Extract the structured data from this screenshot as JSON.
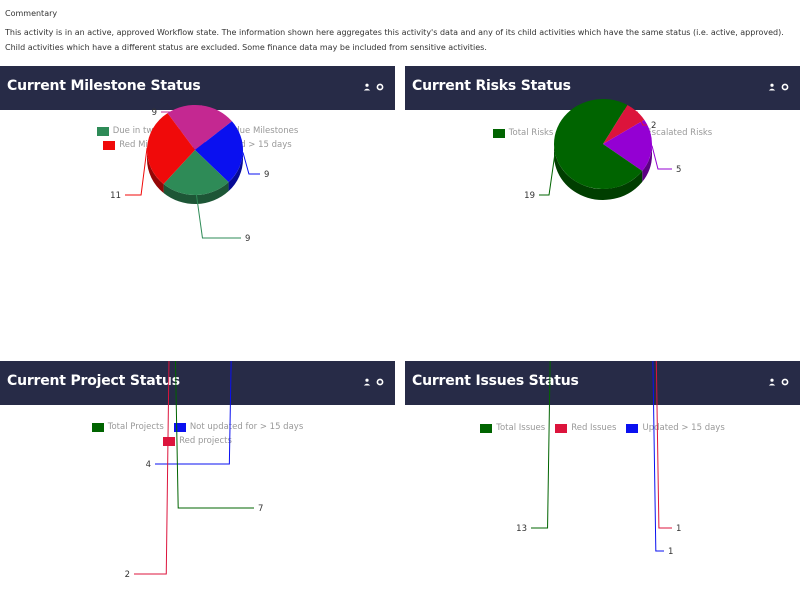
{
  "commentary": {
    "title": "Commentary",
    "text": "This activity is in an active, approved Workflow state. The information shown here aggregates this activity's data and any of its child activities which have the same status (i.e. active, approved). Child activities which have a different status are excluded. Some finance data may be included from sensitive activities."
  },
  "panels": [
    {
      "title": "Current Milestone Status",
      "icons": [
        "person-icon",
        "settings-icon"
      ],
      "chart_data": {
        "type": "pie",
        "legend": [
          [
            "Due in two weeks",
            "Overdue Milestones"
          ],
          [
            "Red Milestones",
            "Updated > 15 days"
          ]
        ],
        "slices": [
          {
            "label": "Overdue Milestones",
            "value": 9,
            "color": "#c42891"
          },
          {
            "label": "Updated > 15 days",
            "value": 9,
            "color": "#0a10f0"
          },
          {
            "label": "Due in two weeks",
            "value": 9,
            "color": "#2e8b57"
          },
          {
            "label": "Red Milestones",
            "value": 11,
            "color": "#f00a0a"
          }
        ]
      }
    },
    {
      "title": "Current Risks Status",
      "icons": [
        "person-icon",
        "settings-icon"
      ],
      "chart_data": {
        "type": "pie",
        "legend": [
          [
            "Total Risks",
            "Red Risks",
            "Escalated Risks"
          ]
        ],
        "slices": [
          {
            "label": "Red Risks",
            "value": 2,
            "color": "#dc143c"
          },
          {
            "label": "Escalated Risks",
            "value": 5,
            "color": "#9400d3"
          },
          {
            "label": "Total Risks",
            "value": 19,
            "color": "#006400"
          }
        ]
      }
    },
    {
      "title": "Current Project Status",
      "icons": [
        "person-icon",
        "settings-icon"
      ],
      "chart_data": {
        "type": "pie",
        "legend": [
          [
            "Total Projects",
            "Not updated for > 15 days"
          ],
          [
            "Red projects"
          ]
        ],
        "slices": [
          {
            "label": "Not updated for > 15 days",
            "value": 4,
            "color": "#0a10f0"
          },
          {
            "label": "Total Projects",
            "value": 7,
            "color": "#006400"
          },
          {
            "label": "Red projects",
            "value": 2,
            "color": "#dc143c"
          }
        ]
      }
    },
    {
      "title": "Current Issues Status",
      "icons": [
        "person-icon",
        "settings-icon"
      ],
      "chart_data": {
        "type": "pie",
        "legend": [
          [
            "Total Issues",
            "Red Issues",
            "Updated > 15 days"
          ]
        ],
        "slices": [
          {
            "label": "Red Issues",
            "value": 1,
            "color": "#dc143c"
          },
          {
            "label": "Updated > 15 days",
            "value": 1,
            "color": "#0a10f0"
          },
          {
            "label": "Total Issues",
            "value": 13,
            "color": "#006400"
          }
        ]
      }
    }
  ]
}
